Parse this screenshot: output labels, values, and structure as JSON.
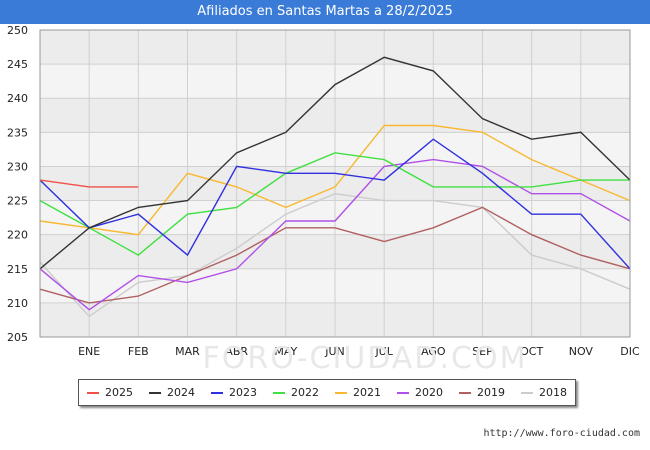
{
  "chart_data": {
    "type": "line",
    "title": "Afiliados en Santas Martas a 28/2/2025",
    "categories": [
      "",
      "ENE",
      "FEB",
      "MAR",
      "ABR",
      "MAY",
      "JUN",
      "JUL",
      "AGO",
      "SEP",
      "OCT",
      "NOV",
      "DIC"
    ],
    "ylim": [
      205,
      250
    ],
    "yticks": [
      205,
      210,
      215,
      220,
      225,
      230,
      235,
      240,
      245,
      250
    ],
    "xlabel": "",
    "ylabel": "",
    "grid": true,
    "legend_position": "bottom",
    "series": [
      {
        "name": "2025",
        "color": "#f0504a",
        "values": [
          228,
          227,
          227,
          null,
          null,
          null,
          null,
          null,
          null,
          null,
          null,
          null,
          null
        ]
      },
      {
        "name": "2024",
        "color": "#333333",
        "values": [
          215,
          221,
          224,
          225,
          232,
          235,
          242,
          246,
          244,
          237,
          234,
          235,
          228
        ]
      },
      {
        "name": "2023",
        "color": "#3030e0",
        "values": [
          228,
          221,
          223,
          217,
          230,
          229,
          229,
          228,
          234,
          229,
          223,
          223,
          215
        ]
      },
      {
        "name": "2022",
        "color": "#40e040",
        "values": [
          225,
          221,
          217,
          223,
          224,
          229,
          232,
          231,
          227,
          227,
          227,
          228,
          228
        ]
      },
      {
        "name": "2021",
        "color": "#f8b830",
        "values": [
          222,
          221,
          220,
          229,
          227,
          224,
          227,
          236,
          236,
          235,
          231,
          228,
          225
        ]
      },
      {
        "name": "2020",
        "color": "#b050e8",
        "values": [
          215,
          209,
          214,
          213,
          215,
          222,
          222,
          230,
          231,
          230,
          226,
          226,
          222
        ]
      },
      {
        "name": "2019",
        "color": "#b06060",
        "values": [
          212,
          210,
          211,
          214,
          217,
          221,
          221,
          219,
          221,
          224,
          220,
          217,
          215
        ]
      },
      {
        "name": "2018",
        "color": "#cccccc",
        "values": [
          216,
          208,
          213,
          214,
          218,
          223,
          226,
          225,
          225,
          224,
          217,
          215,
          212
        ]
      }
    ]
  },
  "watermark": "FORO-CIUDAD.COM",
  "footer_url": "http://www.foro-ciudad.com"
}
